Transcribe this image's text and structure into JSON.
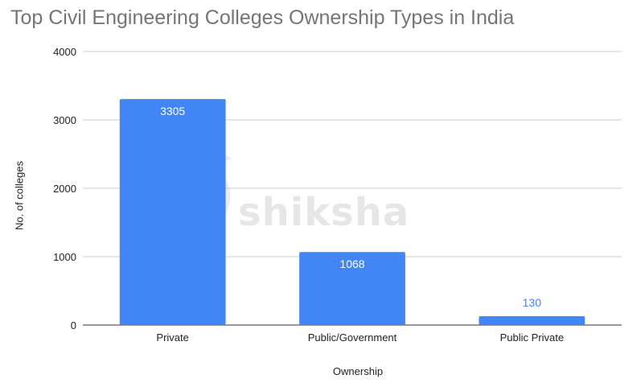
{
  "chart_data": {
    "type": "bar",
    "title": "Top Civil Engineering Colleges Ownership Types in India",
    "xlabel": "Ownership",
    "ylabel": "No. of colleges",
    "categories": [
      "Private",
      "Public/Government",
      "Public Private"
    ],
    "values": [
      3305,
      1068,
      130
    ],
    "data_labels": [
      "3305",
      "1068",
      "130"
    ],
    "ylim": [
      0,
      4000
    ],
    "yticks": [
      0,
      1000,
      2000,
      3000,
      4000
    ],
    "grid": true,
    "bar_color": "#4285f4",
    "watermark": "shiksha"
  }
}
